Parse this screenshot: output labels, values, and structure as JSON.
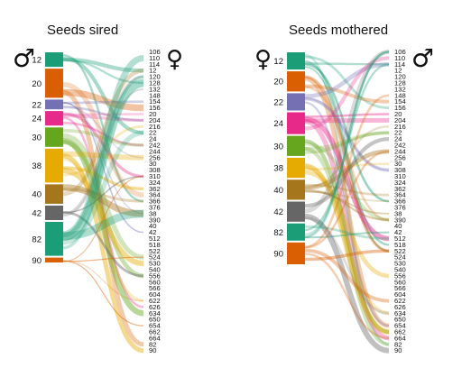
{
  "panels": [
    {
      "title": "Seeds sired",
      "left_symbol": "♂",
      "right_symbol": "♀",
      "left_nodes": [
        {
          "label": "12",
          "color": "#1b9e77",
          "weight": 3
        },
        {
          "label": "20",
          "color": "#d95f02",
          "weight": 6
        },
        {
          "label": "22",
          "color": "#7570b3",
          "weight": 2
        },
        {
          "label": "24",
          "color": "#e7298a",
          "weight": 3
        },
        {
          "label": "30",
          "color": "#66a61e",
          "weight": 4
        },
        {
          "label": "38",
          "color": "#e6ab02",
          "weight": 7
        },
        {
          "label": "40",
          "color": "#a6761d",
          "weight": 4
        },
        {
          "label": "42",
          "color": "#666666",
          "weight": 3
        },
        {
          "label": "82",
          "color": "#1b9e77",
          "weight": 7
        },
        {
          "label": "90",
          "color": "#d95f02",
          "weight": 1
        }
      ],
      "right_labels": [
        "106",
        "110",
        "114",
        "12",
        "120",
        "128",
        "132",
        "148",
        "154",
        "156",
        "20",
        "204",
        "216",
        "22",
        "24",
        "242",
        "244",
        "256",
        "30",
        "308",
        "310",
        "324",
        "362",
        "364",
        "366",
        "376",
        "38",
        "390",
        "40",
        "42",
        "512",
        "518",
        "522",
        "524",
        "530",
        "540",
        "556",
        "560",
        "566",
        "604",
        "622",
        "626",
        "634",
        "650",
        "654",
        "662",
        "664",
        "82",
        "90"
      ]
    },
    {
      "title": "Seeds mothered",
      "left_symbol": "♀",
      "right_symbol": "♂",
      "left_nodes": [
        {
          "label": "12",
          "color": "#1b9e77",
          "weight": 3
        },
        {
          "label": "20",
          "color": "#d95f02",
          "weight": 3.5
        },
        {
          "label": "22",
          "color": "#7570b3",
          "weight": 3
        },
        {
          "label": "24",
          "color": "#e7298a",
          "weight": 3.8
        },
        {
          "label": "30",
          "color": "#66a61e",
          "weight": 3.5
        },
        {
          "label": "38",
          "color": "#e6ab02",
          "weight": 3.5
        },
        {
          "label": "40",
          "color": "#a6761d",
          "weight": 3.5
        },
        {
          "label": "42",
          "color": "#666666",
          "weight": 3.5
        },
        {
          "label": "82",
          "color": "#1b9e77",
          "weight": 3
        },
        {
          "label": "90",
          "color": "#d95f02",
          "weight": 3.8
        }
      ],
      "right_labels": [
        "106",
        "110",
        "114",
        "12",
        "120",
        "128",
        "132",
        "148",
        "154",
        "156",
        "20",
        "204",
        "216",
        "22",
        "24",
        "242",
        "244",
        "256",
        "30",
        "308",
        "310",
        "324",
        "362",
        "364",
        "366",
        "376",
        "38",
        "390",
        "40",
        "42",
        "512",
        "518",
        "522",
        "524",
        "530",
        "540",
        "556",
        "560",
        "566",
        "604",
        "622",
        "626",
        "634",
        "650",
        "654",
        "662",
        "664",
        "82",
        "90"
      ]
    }
  ]
}
